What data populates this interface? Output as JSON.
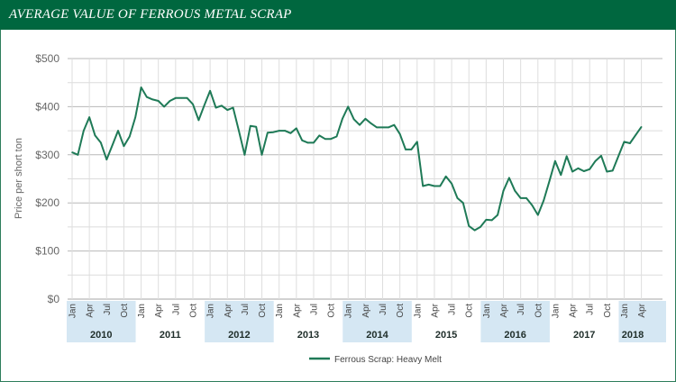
{
  "header": {
    "title": "AVERAGE VALUE OF FERROUS METAL SCRAP"
  },
  "colors": {
    "header": "#00673f",
    "line": "#1f7a57",
    "band": "#d5e7f3"
  },
  "chart_data": {
    "type": "line",
    "title": "AVERAGE VALUE OF FERROUS METAL SCRAP",
    "xlabel": "",
    "ylabel": "Price per short ton",
    "ylim": [
      0,
      500
    ],
    "y_ticks": [
      "$0",
      "$100",
      "$200",
      "$300",
      "$400",
      "$500"
    ],
    "y_tick_values": [
      0,
      100,
      200,
      300,
      400,
      500
    ],
    "grid": true,
    "legend_position": "bottom-center",
    "month_labels": [
      "Jan",
      "Apr",
      "Jul",
      "Oct"
    ],
    "years": [
      "2010",
      "2011",
      "2012",
      "2013",
      "2014",
      "2015",
      "2016",
      "2017",
      "2018"
    ],
    "start": "Jan 2010",
    "end": "Apr 2018",
    "series": [
      {
        "name": "Ferrous Scrap: Heavy Melt",
        "values": [
          305,
          300,
          350,
          378,
          340,
          325,
          290,
          320,
          350,
          318,
          338,
          378,
          440,
          420,
          415,
          412,
          400,
          412,
          418,
          418,
          418,
          405,
          372,
          403,
          433,
          398,
          402,
          393,
          398,
          350,
          300,
          360,
          358,
          300,
          346,
          347,
          350,
          350,
          345,
          355,
          330,
          325,
          325,
          340,
          333,
          333,
          338,
          375,
          400,
          374,
          362,
          375,
          365,
          357,
          357,
          357,
          362,
          343,
          311,
          311,
          327,
          235,
          238,
          235,
          235,
          255,
          240,
          210,
          200,
          152,
          143,
          150,
          165,
          164,
          175,
          225,
          252,
          225,
          210,
          210,
          195,
          175,
          205,
          245,
          287,
          258,
          297,
          265,
          272,
          266,
          270,
          287,
          298,
          265,
          267,
          297,
          327,
          324,
          341,
          358
        ]
      }
    ]
  }
}
